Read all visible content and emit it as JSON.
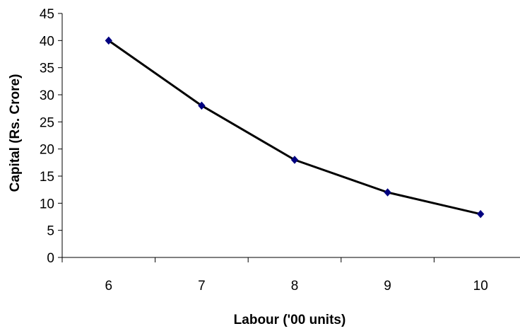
{
  "chart_data": {
    "type": "line",
    "title": "",
    "xlabel": "Labour ('00 units)",
    "ylabel": "Capital (Rs. Crore)",
    "categories": [
      "6",
      "7",
      "8",
      "9",
      "10"
    ],
    "x": [
      6,
      7,
      8,
      9,
      10
    ],
    "series": [
      {
        "values": [
          40,
          28,
          18,
          12,
          8
        ],
        "line_color": "#000000",
        "marker": "diamond",
        "marker_color": "#000080"
      }
    ],
    "ylim": [
      0,
      45
    ],
    "yticks": [
      0,
      5,
      10,
      15,
      20,
      25,
      30,
      35,
      40,
      45
    ],
    "grid": false,
    "legend": "none"
  }
}
